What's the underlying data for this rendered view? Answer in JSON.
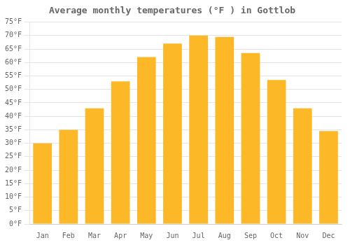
{
  "chart_data": {
    "type": "bar",
    "title": "Average monthly temperatures (°F ) in Gottlob",
    "categories": [
      "Jan",
      "Feb",
      "Mar",
      "Apr",
      "May",
      "Jun",
      "Jul",
      "Aug",
      "Sep",
      "Oct",
      "Nov",
      "Dec"
    ],
    "values": [
      30,
      35,
      43,
      53,
      62,
      67,
      70,
      69.5,
      63.5,
      53.5,
      43,
      34.5
    ],
    "color": "#FDB827",
    "ylim": [
      0,
      75
    ],
    "yticks": [
      {
        "value": 0,
        "label": "0°F"
      },
      {
        "value": 5,
        "label": "5°F"
      },
      {
        "value": 10,
        "label": "10°F"
      },
      {
        "value": 15,
        "label": "15°F"
      },
      {
        "value": 20,
        "label": "20°F"
      },
      {
        "value": 25,
        "label": "25°F"
      },
      {
        "value": 30,
        "label": "30°F"
      },
      {
        "value": 35,
        "label": "35°F"
      },
      {
        "value": 40,
        "label": "40°F"
      },
      {
        "value": 45,
        "label": "45°F"
      },
      {
        "value": 50,
        "label": "50°F"
      },
      {
        "value": 55,
        "label": "55°F"
      },
      {
        "value": 60,
        "label": "60°F"
      },
      {
        "value": 65,
        "label": "65°F"
      },
      {
        "value": 70,
        "label": "70°F"
      },
      {
        "value": 75,
        "label": "75°F"
      }
    ],
    "grid": true
  }
}
